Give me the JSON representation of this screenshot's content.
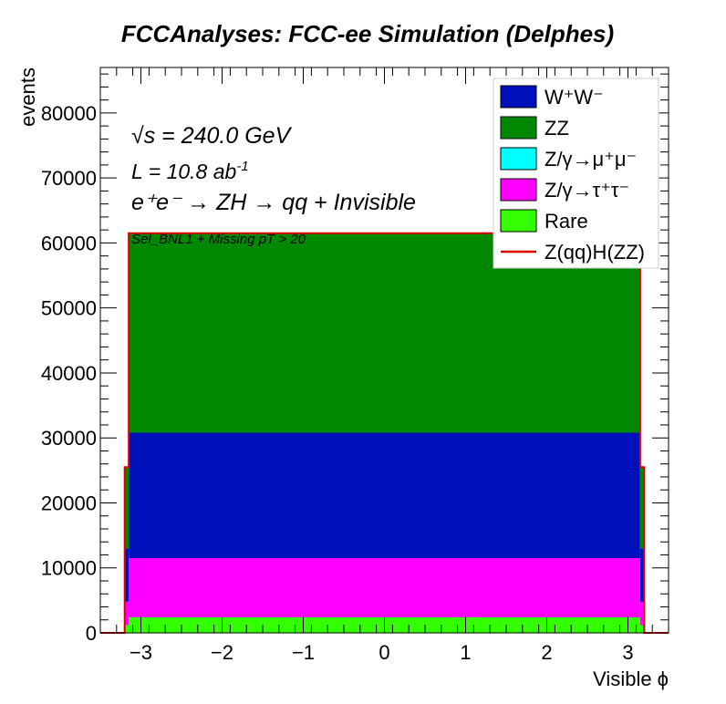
{
  "chart_data": {
    "type": "stacked-histogram",
    "title": "FCCAnalyses: FCC-ee Simulation (Delphes)",
    "xlabel": "Visible ϕ",
    "ylabel": "events",
    "xlim": [
      -3.5,
      3.5
    ],
    "ylim": [
      0,
      87000
    ],
    "xticks": [
      -3,
      -2,
      -1,
      0,
      1,
      2,
      3
    ],
    "xtick_labels": [
      "−3",
      "−2",
      "−1",
      "0",
      "1",
      "2",
      "3"
    ],
    "yticks": [
      0,
      10000,
      20000,
      30000,
      40000,
      50000,
      60000,
      70000,
      80000
    ],
    "ytick_labels": [
      "0",
      "10000",
      "20000",
      "30000",
      "40000",
      "50000",
      "60000",
      "70000",
      "80000"
    ],
    "grid": false,
    "legend_position": "top-right",
    "bin_edges": [
      -3.5,
      -3.2,
      -3.15,
      3.15,
      3.2,
      3.5
    ],
    "series": [
      {
        "name": "Rare",
        "color": "#33ff00",
        "values": [
          0,
          1200,
          2400,
          1200,
          0
        ]
      },
      {
        "name": "Z/γ→τ⁺τ⁻",
        "color": "#ff00ff",
        "values": [
          0,
          3600,
          9100,
          3600,
          0
        ]
      },
      {
        "name": "Z/γ→μ⁺μ⁻",
        "color": "#00ffff",
        "values": [
          0,
          0,
          0,
          0,
          0
        ]
      },
      {
        "name": "W⁺W⁻",
        "color": "#0011bb",
        "values": [
          0,
          8200,
          19300,
          8200,
          0
        ]
      },
      {
        "name": "ZZ",
        "color": "#008800",
        "values": [
          0,
          12500,
          30700,
          12500,
          0
        ]
      }
    ],
    "signal": {
      "name": "Z(qq)H(ZZ)",
      "color": "#dd0000",
      "values": [
        0,
        25500,
        61500,
        25500,
        0
      ]
    },
    "annotations": {
      "sqrt_s": "√s = 240.0 GeV",
      "lumi_prefix": "L = 10.8 ab",
      "lumi_sup": "-1",
      "process": "e⁺e⁻ → ZH → qq + Invisible",
      "selection": "Sel_BNL1 + Missing pT > 20"
    },
    "legend": [
      {
        "label": "W⁺W⁻",
        "color": "#0011bb",
        "kind": "box"
      },
      {
        "label": "ZZ",
        "color": "#008800",
        "kind": "box"
      },
      {
        "label": "Z/γ→μ⁺μ⁻",
        "color": "#00ffff",
        "kind": "box"
      },
      {
        "label": "Z/γ→τ⁺τ⁻",
        "color": "#ff00ff",
        "kind": "box"
      },
      {
        "label": "Rare",
        "color": "#33ff00",
        "kind": "box"
      },
      {
        "label": "Z(qq)H(ZZ)",
        "color": "#dd0000",
        "kind": "line"
      }
    ]
  }
}
